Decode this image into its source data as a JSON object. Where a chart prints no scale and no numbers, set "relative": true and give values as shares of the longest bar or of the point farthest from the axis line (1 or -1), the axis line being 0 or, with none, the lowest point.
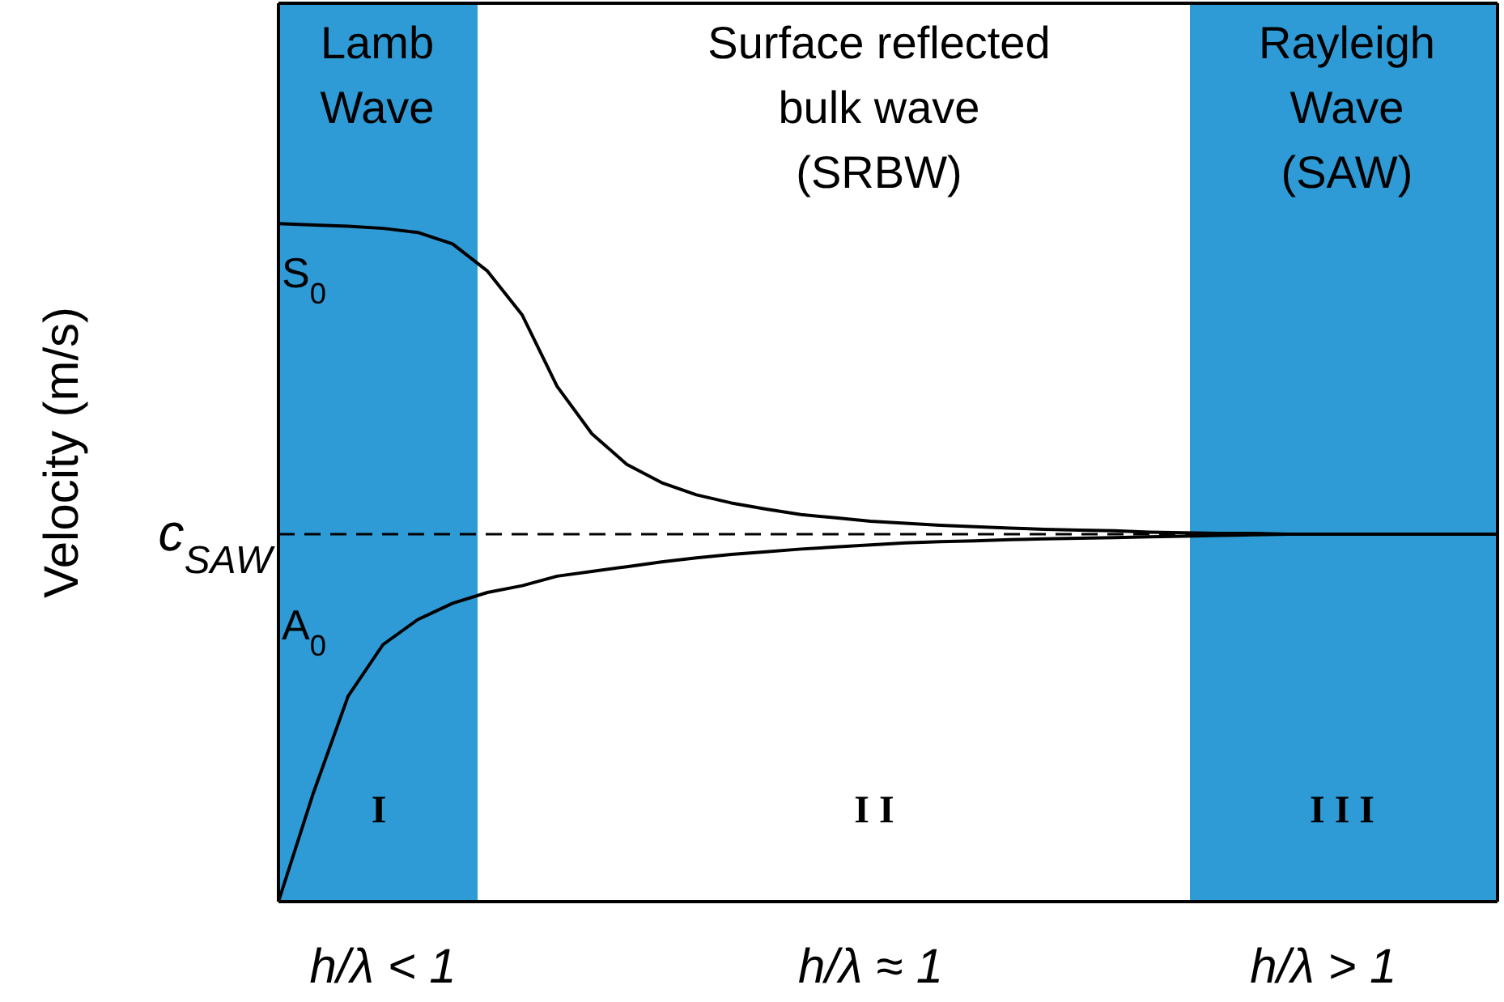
{
  "chart_data": {
    "type": "line",
    "relative": true,
    "ylabel": "Velocity (m/s)",
    "categories": [
      null,
      null,
      null,
      "h/λ < 1",
      null,
      null,
      null,
      null,
      null,
      null,
      null,
      null,
      null,
      null,
      null,
      null,
      null,
      "h/λ ≈ 1",
      null,
      null,
      null,
      null,
      null,
      null,
      null,
      null,
      null,
      null,
      null,
      null,
      "h/λ > 1",
      null,
      null,
      null,
      null,
      null
    ],
    "series": [
      {
        "name": "S$_{0}$",
        "color": "#000000",
        "values": [
          1,
          0.998,
          0.996,
          0.993,
          0.987,
          0.97,
          0.93,
          0.865,
          0.76,
          0.69,
          0.645,
          0.618,
          0.6,
          0.588,
          0.579,
          0.571,
          0.566,
          0.561,
          0.558,
          0.555,
          0.553,
          0.551,
          0.549,
          0.548,
          0.547,
          0.545,
          0.544,
          0.543,
          0.543,
          0.542,
          0.542,
          0.542,
          0.542,
          0.542,
          0.542,
          0.542
        ]
      },
      {
        "name": "A$_{0}$",
        "color": "#000000",
        "values": [
          0,
          0.16,
          0.303,
          0.379,
          0.416,
          0.44,
          0.456,
          0.466,
          0.48,
          0.487,
          0.494,
          0.501,
          0.507,
          0.512,
          0.516,
          0.52,
          0.523,
          0.526,
          0.529,
          0.531,
          0.532,
          0.534,
          0.535,
          0.536,
          0.537,
          0.538,
          0.539,
          0.54,
          0.541,
          0.542,
          0.542,
          0.542,
          0.542,
          0.542,
          0.542,
          0.542
        ]
      }
    ],
    "ref_lines": [
      {
        "axis": "y",
        "value": 0.542,
        "label": "c$_{SAW}$",
        "line_style": "dashed",
        "color": "#000000"
      }
    ],
    "annotations": [
      "Lamb\nWave",
      "Surface reflected\nbulk wave\n(SRBW)",
      "Rayleigh\nWave\n(SAW)",
      "I",
      "II",
      "III"
    ],
    "marker": "none",
    "line_style": "solid"
  }
}
